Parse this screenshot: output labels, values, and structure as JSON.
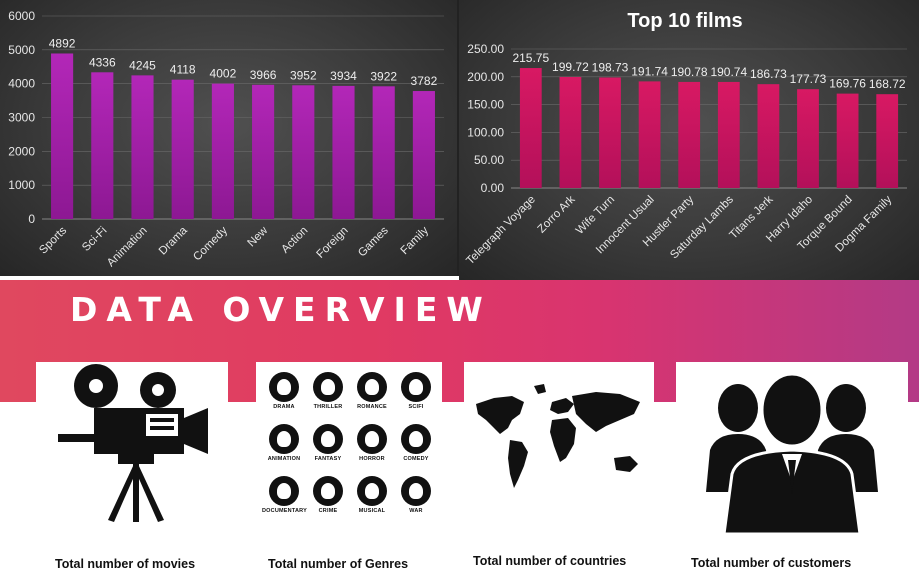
{
  "chart_data": [
    {
      "type": "bar",
      "title": "",
      "categories": [
        "Sports",
        "Sci-Fi",
        "Animation",
        "Drama",
        "Comedy",
        "New",
        "Action",
        "Foreign",
        "Games",
        "Family"
      ],
      "values": [
        4892,
        4336,
        4245,
        4118,
        4002,
        3966,
        3952,
        3934,
        3922,
        3782
      ],
      "value_labels": [
        "4892",
        "4336",
        "4245",
        "4118",
        "4002",
        "3966",
        "3952",
        "3934",
        "3922",
        "3782"
      ],
      "ylim": [
        0,
        6000
      ],
      "yticks": [
        "0",
        "1000",
        "2000",
        "3000",
        "4000",
        "5000",
        "6000"
      ],
      "color": "#a020a8",
      "grid": true
    },
    {
      "type": "bar",
      "title": "Top 10 films",
      "categories": [
        "Telegraph Voyage",
        "Zorro Ark",
        "Wife Turn",
        "Innocent Usual",
        "Hustler Party",
        "Saturday Lambs",
        "Titans Jerk",
        "Harry Idaho",
        "Torque Bound",
        "Dogma Family"
      ],
      "values": [
        215.75,
        199.72,
        198.73,
        191.74,
        190.78,
        190.74,
        186.73,
        177.73,
        169.76,
        168.72
      ],
      "value_labels": [
        "215.75",
        "199.72",
        "198.73",
        "191.74",
        "190.78",
        "190.74",
        "186.73",
        "177.73",
        "169.76",
        "168.72"
      ],
      "ylim": [
        0,
        250
      ],
      "yticks": [
        "0.00",
        "50.00",
        "100.00",
        "150.00",
        "200.00",
        "250.00"
      ],
      "color": "#d0145c",
      "grid": true
    }
  ],
  "banner": {
    "title": "DATA OVERVIEW"
  },
  "cards": [
    {
      "label": "Total number of movies",
      "icon": "movie-camera-icon"
    },
    {
      "label": "Total number of Genres",
      "icon": "genres-icon"
    },
    {
      "label": "Total number of countries",
      "icon": "world-map-icon"
    },
    {
      "label": "Total number of customers",
      "icon": "customers-icon"
    }
  ],
  "genres": [
    "DRAMA",
    "THRILLER",
    "ROMANCE",
    "SCIFI",
    "ANIMATION",
    "FANTASY",
    "HORROR",
    "COMEDY",
    "DOCUMENTARY",
    "CRIME",
    "MUSICAL",
    "WAR"
  ]
}
